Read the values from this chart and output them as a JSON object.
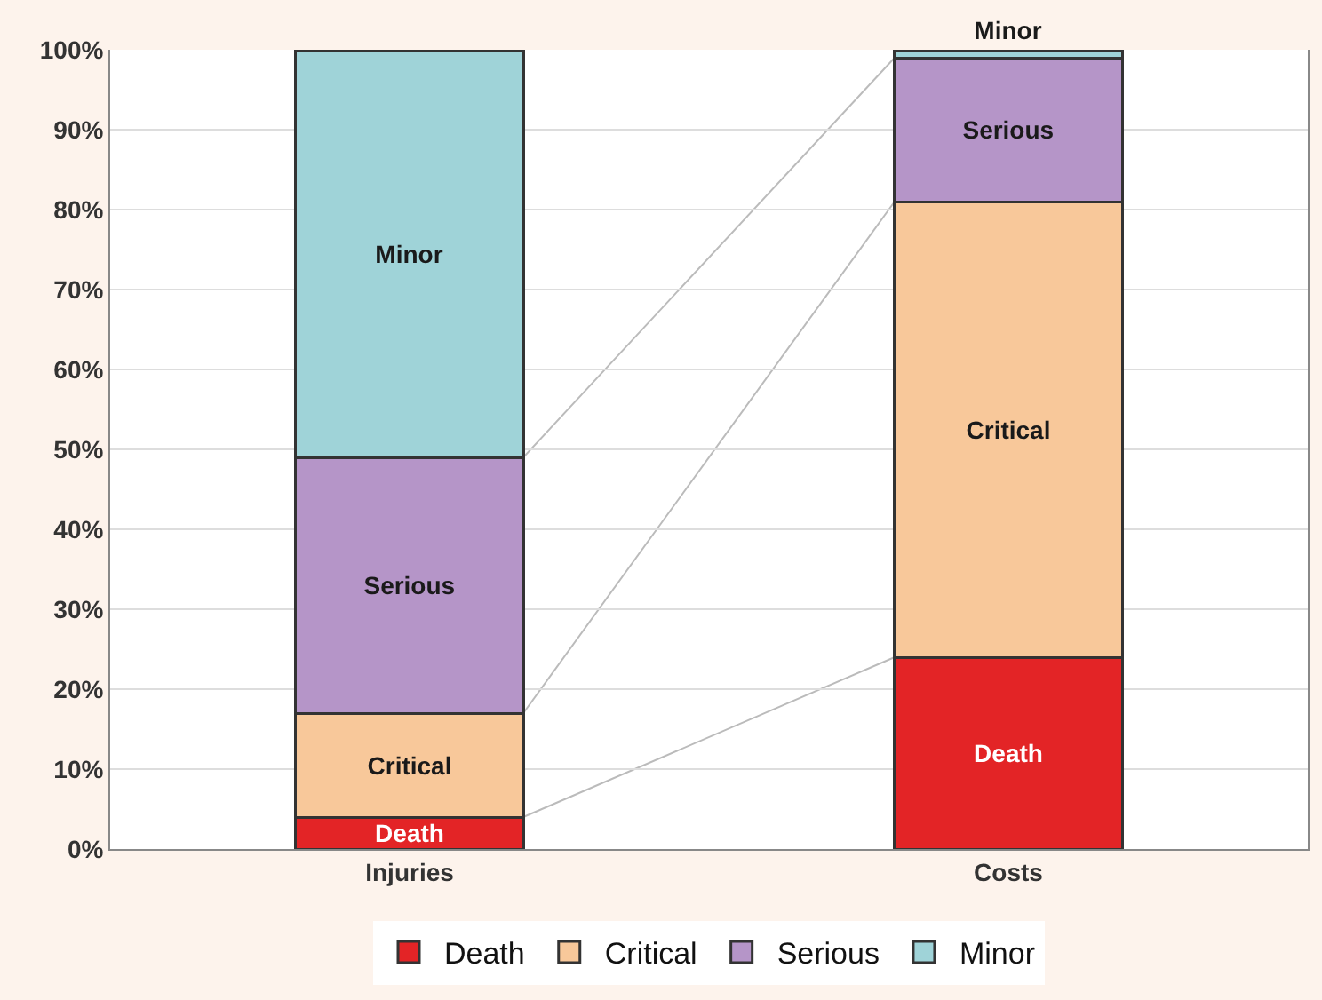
{
  "chart_data": {
    "type": "bar",
    "stacked": true,
    "categories": [
      "Injuries",
      "Costs"
    ],
    "series": [
      {
        "name": "Death",
        "color": "#e32426",
        "values": [
          4,
          24
        ]
      },
      {
        "name": "Critical",
        "color": "#f8c89a",
        "values": [
          13,
          57
        ]
      },
      {
        "name": "Serious",
        "color": "#b595c8",
        "values": [
          32,
          18
        ]
      },
      {
        "name": "Minor",
        "color": "#9fd3d8",
        "values": [
          51,
          1
        ]
      }
    ],
    "ylim": [
      0,
      100
    ],
    "yticks": [
      {
        "value": 0,
        "label": "0%"
      },
      {
        "value": 10,
        "label": "10%"
      },
      {
        "value": 20,
        "label": "20%"
      },
      {
        "value": 30,
        "label": "30%"
      },
      {
        "value": 40,
        "label": "40%"
      },
      {
        "value": 50,
        "label": "50%"
      },
      {
        "value": 60,
        "label": "60%"
      },
      {
        "value": 70,
        "label": "70%"
      },
      {
        "value": 80,
        "label": "80%"
      },
      {
        "value": 90,
        "label": "90%"
      },
      {
        "value": 100,
        "label": "100%"
      }
    ],
    "grid": "y",
    "legend": "bottom"
  }
}
